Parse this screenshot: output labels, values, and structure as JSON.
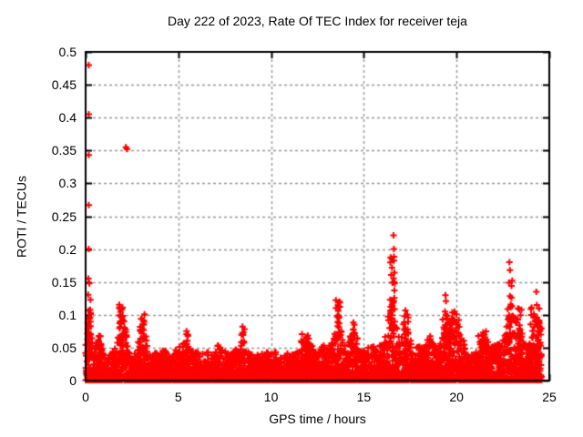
{
  "page": {
    "background_color": "#ffffff",
    "text_color": "#000000"
  },
  "chart_data": {
    "type": "scatter",
    "title": "Day 222 of 2023, Rate Of TEC Index for receiver teja",
    "xlabel": "GPS time / hours",
    "ylabel": "ROTI / TECUs",
    "xlim": [
      0,
      25
    ],
    "ylim": [
      0,
      0.5
    ],
    "xticks": [
      0,
      5,
      10,
      15,
      20,
      25
    ],
    "xtick_labels": [
      "0",
      "5",
      "10",
      "15",
      "20",
      "25"
    ],
    "yticks": [
      0,
      0.05,
      0.1,
      0.15,
      0.2,
      0.25,
      0.3,
      0.35,
      0.4,
      0.45,
      0.5
    ],
    "ytick_labels": [
      "0",
      "0.05",
      "0.1",
      "0.15",
      "0.2",
      "0.25",
      "0.3",
      "0.35",
      "0.4",
      "0.45",
      "0.5"
    ],
    "grid": true,
    "grid_style": "dashed",
    "grid_color": "#999999",
    "axis_color": "#000000",
    "legend": "none",
    "marker": {
      "glyph": "plus",
      "color": "#ff0000",
      "size": 7,
      "stroke": 2
    },
    "series_name": "ROTI",
    "data_span_hours": [
      0,
      24.6
    ],
    "baseline_band": {
      "description": "dense band of points hugging 0-0.03 TECUs across all 24 hours",
      "x_start": 0,
      "x_step": 0.2,
      "top_envelope": [
        0.06,
        0.1,
        0.05,
        0.065,
        0.06,
        0.04,
        0.035,
        0.045,
        0.05,
        0.08,
        0.11,
        0.07,
        0.045,
        0.04,
        0.055,
        0.1,
        0.075,
        0.045,
        0.04,
        0.045,
        0.04,
        0.05,
        0.04,
        0.04,
        0.045,
        0.05,
        0.055,
        0.07,
        0.05,
        0.045,
        0.05,
        0.045,
        0.04,
        0.045,
        0.05,
        0.045,
        0.06,
        0.055,
        0.045,
        0.04,
        0.045,
        0.05,
        0.07,
        0.055,
        0.045,
        0.04,
        0.045,
        0.04,
        0.05,
        0.045,
        0.04,
        0.045,
        0.04,
        0.035,
        0.04,
        0.045,
        0.04,
        0.045,
        0.06,
        0.07,
        0.065,
        0.06,
        0.05,
        0.045,
        0.055,
        0.05,
        0.055,
        0.08,
        0.11,
        0.075,
        0.055,
        0.065,
        0.085,
        0.07,
        0.05,
        0.045,
        0.05,
        0.055,
        0.05,
        0.055,
        0.06,
        0.07,
        0.12,
        0.14,
        0.08,
        0.065,
        0.1,
        0.08,
        0.055,
        0.05,
        0.055,
        0.05,
        0.06,
        0.07,
        0.055,
        0.05,
        0.07,
        0.095,
        0.105,
        0.095,
        0.09,
        0.08,
        0.06,
        0.04,
        0.045,
        0.055,
        0.07,
        0.075,
        0.065,
        0.055,
        0.06,
        0.055,
        0.06,
        0.075,
        0.12,
        0.1,
        0.1,
        0.095,
        0.065,
        0.055,
        0.075,
        0.1,
        0.095,
        0.085
      ]
    },
    "spike_clusters": [
      {
        "x": 0.18,
        "dx": 0.1,
        "ymin": 0.03,
        "ymax": 0.135,
        "n": 30
      },
      {
        "x": 0.75,
        "dx": 0.12,
        "ymin": 0.03,
        "ymax": 0.068,
        "n": 12
      },
      {
        "x": 1.95,
        "dx": 0.14,
        "ymin": 0.04,
        "ymax": 0.118,
        "n": 24
      },
      {
        "x": 3.05,
        "dx": 0.13,
        "ymin": 0.035,
        "ymax": 0.103,
        "n": 18
      },
      {
        "x": 5.45,
        "dx": 0.07,
        "ymin": 0.035,
        "ymax": 0.076,
        "n": 8
      },
      {
        "x": 8.5,
        "dx": 0.09,
        "ymin": 0.035,
        "ymax": 0.082,
        "n": 10
      },
      {
        "x": 11.9,
        "dx": 0.3,
        "ymin": 0.03,
        "ymax": 0.072,
        "n": 14
      },
      {
        "x": 13.6,
        "dx": 0.12,
        "ymin": 0.04,
        "ymax": 0.124,
        "n": 20
      },
      {
        "x": 14.5,
        "dx": 0.1,
        "ymin": 0.04,
        "ymax": 0.09,
        "n": 10
      },
      {
        "x": 16.55,
        "dx": 0.13,
        "ymin": 0.05,
        "ymax": 0.19,
        "n": 30
      },
      {
        "x": 17.3,
        "dx": 0.09,
        "ymin": 0.05,
        "ymax": 0.115,
        "n": 12
      },
      {
        "x": 19.7,
        "dx": 0.45,
        "ymin": 0.035,
        "ymax": 0.105,
        "n": 32
      },
      {
        "x": 21.4,
        "dx": 0.22,
        "ymin": 0.03,
        "ymax": 0.075,
        "n": 14
      },
      {
        "x": 22.9,
        "dx": 0.1,
        "ymin": 0.05,
        "ymax": 0.155,
        "n": 16
      },
      {
        "x": 23.35,
        "dx": 0.16,
        "ymin": 0.04,
        "ymax": 0.11,
        "n": 18
      },
      {
        "x": 24.25,
        "dx": 0.28,
        "ymin": 0.03,
        "ymax": 0.115,
        "n": 26
      }
    ],
    "outlier_points": [
      [
        0.17,
        0.48
      ],
      [
        0.17,
        0.405
      ],
      [
        0.17,
        0.343
      ],
      [
        0.17,
        0.267
      ],
      [
        0.17,
        0.2
      ],
      [
        0.15,
        0.155
      ],
      [
        0.2,
        0.148
      ],
      [
        2.17,
        0.355
      ],
      [
        2.23,
        0.352
      ],
      [
        16.6,
        0.221
      ],
      [
        16.62,
        0.2
      ],
      [
        22.85,
        0.18
      ],
      [
        22.88,
        0.168
      ],
      [
        23.0,
        0.152
      ],
      [
        19.4,
        0.13
      ],
      [
        19.43,
        0.121
      ],
      [
        24.3,
        0.135
      ],
      [
        24.33,
        0.115
      ]
    ]
  }
}
